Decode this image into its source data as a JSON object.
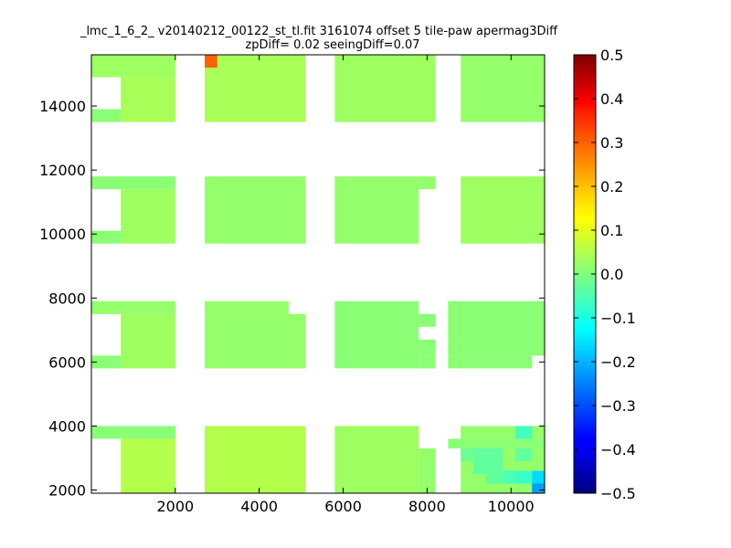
{
  "chart_data": {
    "type": "heatmap",
    "title_line1": "_lmc_1_6_2_ v20140212_00122_st_tl.fit 3161074 offset 5 tile-paw apermag3Diff",
    "title_line2": "zpDiff= 0.02 seeingDiff=0.07",
    "xlim": [
      0,
      10800
    ],
    "ylim": [
      1900,
      15600
    ],
    "x_ticks": [
      2000,
      4000,
      6000,
      8000,
      10000
    ],
    "y_ticks": [
      2000,
      4000,
      6000,
      8000,
      10000,
      12000,
      14000
    ],
    "colorbar": {
      "colormap": "jet",
      "vmin": -0.5,
      "vmax": 0.5,
      "ticks": [
        "0.5",
        "0.4",
        "0.3",
        "0.2",
        "0.1",
        "0.0",
        "−0.1",
        "−0.2",
        "−0.3",
        "−0.4",
        "−0.5"
      ]
    },
    "cell_size": [
      350,
      350
    ],
    "base_value": 0.02,
    "cells": [
      {
        "x0": 0,
        "x1": 2000,
        "y0": 14900,
        "y1": 15600,
        "v": 0.03
      },
      {
        "x0": 700,
        "x1": 2000,
        "y0": 13500,
        "y1": 14900,
        "v": 0.04
      },
      {
        "x0": 0,
        "x1": 700,
        "y0": 13500,
        "y1": 13900,
        "v": 0.01
      },
      {
        "x0": 2700,
        "x1": 5100,
        "y0": 13500,
        "y1": 15600,
        "v": 0.04
      },
      {
        "x0": 2700,
        "x1": 3000,
        "y0": 15200,
        "y1": 15600,
        "v": 0.28
      },
      {
        "x0": 5800,
        "x1": 8200,
        "y0": 13500,
        "y1": 15600,
        "v": 0.03
      },
      {
        "x0": 8800,
        "x1": 10800,
        "y0": 13500,
        "y1": 15600,
        "v": 0.02
      },
      {
        "x0": 0,
        "x1": 2000,
        "y0": 11400,
        "y1": 11800,
        "v": 0.01
      },
      {
        "x0": 700,
        "x1": 2000,
        "y0": 9700,
        "y1": 11400,
        "v": 0.03
      },
      {
        "x0": 0,
        "x1": 700,
        "y0": 9700,
        "y1": 10100,
        "v": 0.01
      },
      {
        "x0": 2700,
        "x1": 5100,
        "y0": 9700,
        "y1": 11800,
        "v": 0.02
      },
      {
        "x0": 5800,
        "x1": 7800,
        "y0": 9700,
        "y1": 11800,
        "v": 0.02
      },
      {
        "x0": 7800,
        "x1": 8200,
        "y0": 11400,
        "y1": 11800,
        "v": 0.02
      },
      {
        "x0": 8800,
        "x1": 10800,
        "y0": 9700,
        "y1": 11800,
        "v": 0.03
      },
      {
        "x0": 0,
        "x1": 2000,
        "y0": 7500,
        "y1": 7900,
        "v": 0.02
      },
      {
        "x0": 700,
        "x1": 2000,
        "y0": 5800,
        "y1": 7500,
        "v": 0.03
      },
      {
        "x0": 0,
        "x1": 700,
        "y0": 5800,
        "y1": 6200,
        "v": 0.01
      },
      {
        "x0": 2700,
        "x1": 4700,
        "y0": 7500,
        "y1": 7900,
        "v": 0.02
      },
      {
        "x0": 2700,
        "x1": 5100,
        "y0": 5800,
        "y1": 7500,
        "v": 0.02
      },
      {
        "x0": 5800,
        "x1": 7800,
        "y0": 5800,
        "y1": 7900,
        "v": 0.01
      },
      {
        "x0": 7800,
        "x1": 8200,
        "y0": 7100,
        "y1": 7500,
        "v": 0.01
      },
      {
        "x0": 7800,
        "x1": 8200,
        "y0": 6200,
        "y1": 6700,
        "v": 0.01
      },
      {
        "x0": 7800,
        "x1": 8200,
        "y0": 5800,
        "y1": 6200,
        "v": 0.01
      },
      {
        "x0": 8500,
        "x1": 10800,
        "y0": 6200,
        "y1": 7900,
        "v": 0.01
      },
      {
        "x0": 8500,
        "x1": 10500,
        "y0": 5800,
        "y1": 6200,
        "v": 0.01
      },
      {
        "x0": 0,
        "x1": 2000,
        "y0": 3600,
        "y1": 4000,
        "v": 0.01
      },
      {
        "x0": 700,
        "x1": 2000,
        "y0": 1900,
        "y1": 3600,
        "v": 0.05
      },
      {
        "x0": 2700,
        "x1": 5100,
        "y0": 1900,
        "y1": 4000,
        "v": 0.05
      },
      {
        "x0": 5800,
        "x1": 7800,
        "y0": 1900,
        "y1": 4000,
        "v": 0.03
      },
      {
        "x0": 7800,
        "x1": 8200,
        "y0": 1900,
        "y1": 3300,
        "v": 0.02
      },
      {
        "x0": 8500,
        "x1": 10800,
        "y0": 3300,
        "y1": 3600,
        "v": 0.01
      },
      {
        "x0": 8800,
        "x1": 10800,
        "y0": 3600,
        "y1": 4000,
        "v": 0.02
      },
      {
        "x0": 8800,
        "x1": 10800,
        "y0": 1900,
        "y1": 3300,
        "v": 0.02
      },
      {
        "x0": 10100,
        "x1": 10500,
        "y0": 3600,
        "y1": 4000,
        "v": -0.06
      },
      {
        "x0": 8800,
        "x1": 9100,
        "y0": 2900,
        "y1": 3300,
        "v": -0.02
      },
      {
        "x0": 9100,
        "x1": 9800,
        "y0": 2500,
        "y1": 3300,
        "v": -0.03
      },
      {
        "x0": 9400,
        "x1": 9800,
        "y0": 2200,
        "y1": 2600,
        "v": -0.03
      },
      {
        "x0": 9800,
        "x1": 10100,
        "y0": 2200,
        "y1": 2600,
        "v": -0.05
      },
      {
        "x0": 10100,
        "x1": 10500,
        "y0": 2900,
        "y1": 3300,
        "v": -0.03
      },
      {
        "x0": 10100,
        "x1": 10500,
        "y0": 2200,
        "y1": 2600,
        "v": -0.07
      },
      {
        "x0": 10500,
        "x1": 10800,
        "y0": 2200,
        "y1": 2600,
        "v": -0.16
      },
      {
        "x0": 10500,
        "x1": 10800,
        "y0": 1900,
        "y1": 2200,
        "v": -0.22
      }
    ]
  }
}
